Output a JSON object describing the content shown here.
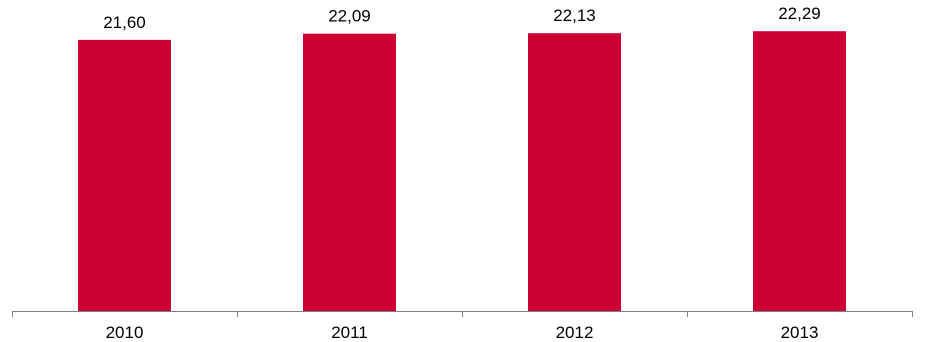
{
  "chart_data": {
    "type": "bar",
    "categories": [
      "2010",
      "2011",
      "2012",
      "2013"
    ],
    "values": [
      21.6,
      22.09,
      22.13,
      22.29
    ],
    "data_labels": [
      "21,60",
      "22,09",
      "22,13",
      "22,29"
    ],
    "title": "",
    "xlabel": "",
    "ylabel": "",
    "ylim": [
      0,
      23.5
    ],
    "grid": false,
    "legend": "none",
    "bar_color": "#cc0033",
    "axis_color": "#808080"
  }
}
